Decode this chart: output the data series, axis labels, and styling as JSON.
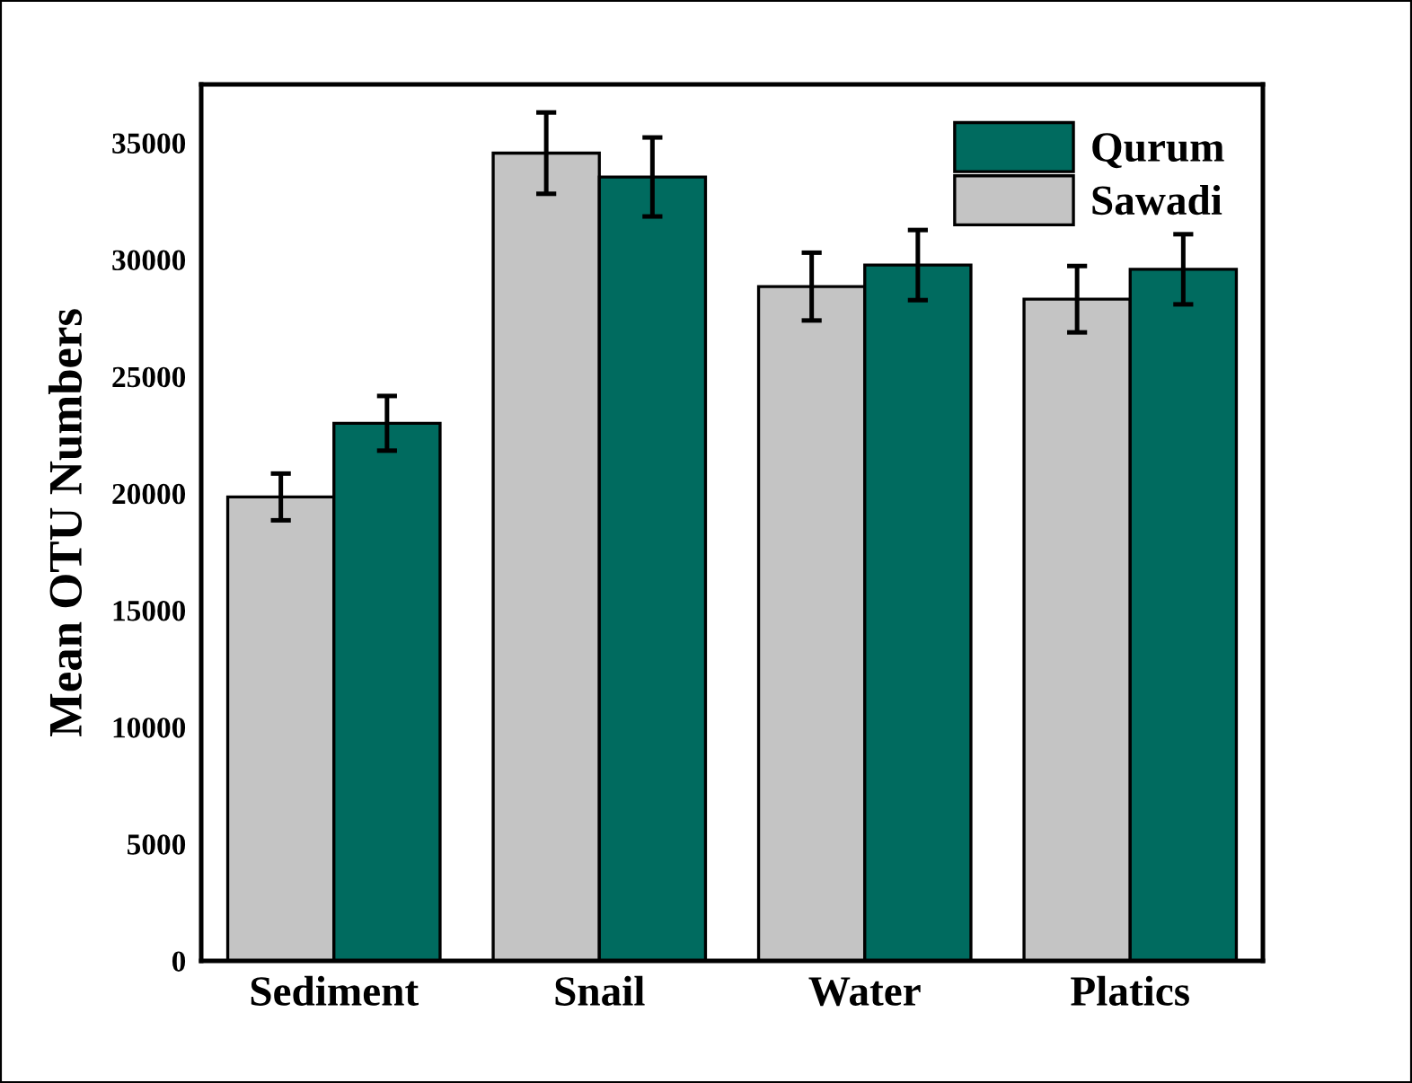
{
  "chart_data": {
    "type": "bar",
    "ylabel": "Mean OTU Numbers",
    "categories": [
      "Sediment",
      "Snail",
      "Water",
      "Platics"
    ],
    "series": [
      {
        "name": "Sawadi",
        "color": "#c4c4c4",
        "values": [
          19850,
          34560,
          28850,
          28310
        ],
        "errors": [
          1000,
          1740,
          1450,
          1420
        ]
      },
      {
        "name": "Qurum",
        "color": "#006b5f",
        "values": [
          23000,
          33540,
          29770,
          29590
        ],
        "errors": [
          1170,
          1690,
          1500,
          1500
        ]
      }
    ],
    "ylim": [
      0,
      37500
    ],
    "yticks": [
      0,
      5000,
      10000,
      15000,
      20000,
      25000,
      30000,
      35000
    ],
    "grid": false,
    "legend": "top right"
  }
}
